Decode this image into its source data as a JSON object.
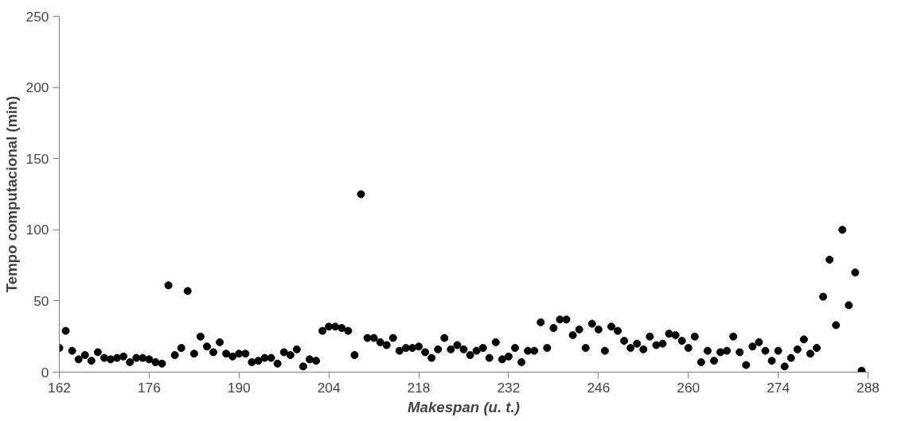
{
  "chart_data": {
    "type": "scatter",
    "xlabel": "Makespan (u. t.)",
    "ylabel": "Tempo computacional (min)",
    "x": [
      162,
      163,
      164,
      165,
      166,
      167,
      168,
      169,
      170,
      171,
      172,
      173,
      174,
      175,
      176,
      177,
      178,
      179,
      180,
      181,
      182,
      183,
      184,
      185,
      186,
      187,
      188,
      189,
      190,
      191,
      192,
      193,
      194,
      195,
      196,
      197,
      198,
      199,
      200,
      201,
      202,
      203,
      204,
      205,
      206,
      207,
      208,
      209,
      210,
      211,
      212,
      213,
      214,
      215,
      216,
      217,
      218,
      219,
      220,
      221,
      222,
      223,
      224,
      225,
      226,
      227,
      228,
      229,
      230,
      231,
      232,
      233,
      234,
      235,
      236,
      237,
      238,
      239,
      240,
      241,
      242,
      243,
      244,
      245,
      246,
      247,
      248,
      249,
      250,
      251,
      252,
      253,
      254,
      255,
      256,
      257,
      258,
      259,
      260,
      261,
      262,
      263,
      264,
      265,
      266,
      267,
      268,
      269,
      270,
      271,
      272,
      273,
      274,
      275,
      276,
      277,
      278,
      279,
      280,
      281,
      282,
      283,
      284,
      285,
      286,
      287
    ],
    "series": [
      {
        "color": "#000000",
        "values": [
          17,
          29,
          15,
          9,
          12,
          8,
          14,
          10,
          9,
          10,
          11,
          7,
          10,
          10,
          9,
          7,
          6,
          61,
          12,
          17,
          57,
          13,
          25,
          18,
          14,
          21,
          13,
          11,
          13,
          13,
          7,
          8,
          10,
          10,
          6,
          14,
          12,
          16,
          4,
          9,
          8,
          29,
          32,
          32,
          31,
          29,
          12,
          125,
          24,
          24,
          21,
          19,
          24,
          15,
          17,
          17,
          18,
          14,
          10,
          16,
          24,
          16,
          19,
          16,
          12,
          15,
          17,
          10,
          21,
          9,
          11,
          17,
          7,
          15,
          15,
          35,
          17,
          31,
          37,
          37,
          26,
          30,
          17,
          34,
          30,
          15,
          32,
          29,
          22,
          17,
          20,
          16,
          25,
          19,
          20,
          27,
          26,
          22,
          17,
          25,
          7,
          15,
          8,
          14,
          15,
          25,
          14,
          5,
          18,
          21,
          15,
          8,
          15,
          4,
          10,
          16,
          23,
          13,
          17,
          53,
          79,
          33,
          100,
          47,
          70,
          1
        ]
      }
    ],
    "xlim": [
      162,
      288
    ],
    "ylim": [
      0,
      250
    ],
    "xticks": [
      162,
      176,
      190,
      204,
      218,
      232,
      246,
      260,
      274,
      288
    ],
    "yticks": [
      0,
      50,
      100,
      150,
      200,
      250
    ],
    "grid": false,
    "marker": "circle"
  }
}
